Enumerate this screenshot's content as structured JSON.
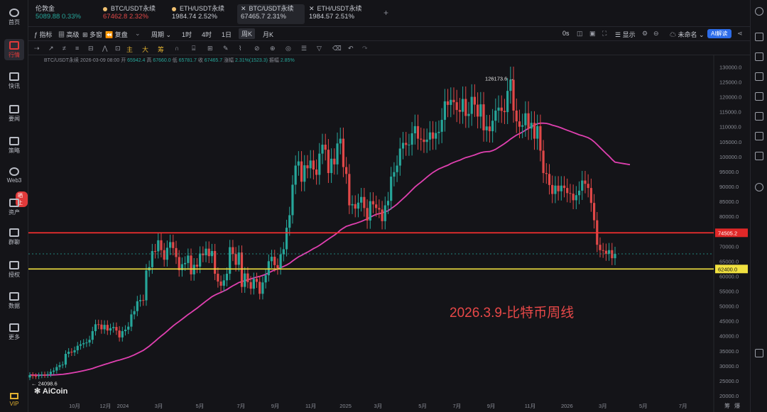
{
  "sidebar": {
    "items": [
      {
        "label": "首页",
        "icon": "home-icon"
      },
      {
        "label": "行情",
        "icon": "chart-icon"
      },
      {
        "label": "快讯",
        "icon": "news-flash-icon"
      },
      {
        "label": "要闻",
        "icon": "newspaper-icon"
      },
      {
        "label": "策略",
        "icon": "robot-icon"
      },
      {
        "label": "Web3",
        "icon": "web3-icon"
      },
      {
        "label": "资产",
        "icon": "wallet-icon"
      },
      {
        "label": "群聊",
        "icon": "chat-icon"
      },
      {
        "label": "授权",
        "icon": "authorize-icon"
      },
      {
        "label": "数据",
        "icon": "data-icon"
      },
      {
        "label": "更多",
        "icon": "more-grid-icon"
      },
      {
        "label": "VIP",
        "icon": "vip-icon"
      }
    ],
    "badge": "晒上"
  },
  "tabs": [
    {
      "title": "伦敦金",
      "price": "5089.88",
      "change": "0.33%",
      "dir": "up"
    },
    {
      "title": "BTC/USDT永续",
      "price": "67462.8",
      "change": "2.32%",
      "dir": "down"
    },
    {
      "title": "ETH/USDT永续",
      "price": "1984.74",
      "change": "2.52%",
      "dir": "neutral"
    },
    {
      "title": "BTC/USDT永续",
      "price": "67465.7",
      "change": "2.31%",
      "dir": "neutral"
    },
    {
      "title": "ETH/USDT永续",
      "price": "1984.57",
      "change": "2.51%",
      "dir": "neutral"
    }
  ],
  "toolbar": {
    "indicator": "指标",
    "advanced": "高级",
    "multi": "多窗",
    "replay": "复盘",
    "period": "周期",
    "intervals": [
      "1时",
      "4时",
      "1日",
      "周K",
      "月K"
    ],
    "selected_interval": "周K",
    "countdown": "0s",
    "display": "显示",
    "unnamed": "未命名",
    "ai": "AI解读"
  },
  "drawbar": {
    "main": "主",
    "big": "大",
    "chips": "筹"
  },
  "info": {
    "symbol": "BTC/USDT永续",
    "datetime": "2026-03-09 08:00",
    "open_label": "开",
    "open": "65942.4",
    "high_label": "高",
    "high": "67660.0",
    "low_label": "低",
    "low": "65781.7",
    "close_label": "收",
    "close": "67465.7",
    "change_label": "涨幅",
    "change": "2.31%(1523.3)",
    "amp_label": "振幅",
    "amp": "2.85%"
  },
  "annotation": "2026.3.9-比特币周线",
  "logo": "AiCoin",
  "bottom_right": [
    "筹",
    "爆"
  ],
  "colors": {
    "up": "#26a69a",
    "down": "#e04848",
    "ma": "#e040b0",
    "red_line": "#ff3030",
    "yellow_line": "#f0e040"
  },
  "chart_data": {
    "type": "candlestick",
    "ylim": [
      20000,
      132000
    ],
    "yticks": [
      130000,
      125000,
      120000,
      115000,
      110000,
      105000,
      100000,
      95000,
      90000,
      85000,
      80000,
      75000,
      70000,
      65000,
      60000,
      55000,
      50000,
      45000,
      40000,
      35000,
      30000,
      25000,
      20000
    ],
    "x_labels": [
      "10月",
      "12月",
      "2024",
      "3月",
      "5月",
      "7月",
      "9月",
      "11月",
      "2025",
      "3月",
      "5月",
      "7月",
      "9月",
      "11月",
      "2026",
      "3月",
      "5月",
      "7月"
    ],
    "price_lines": [
      {
        "value": 74505.2,
        "label": "74505.2",
        "color": "#ff3030"
      },
      {
        "value": 62400.0,
        "label": "62400.0",
        "color": "#f0e040"
      }
    ],
    "current_price": 67465.7,
    "high_marker": {
      "value": 126173.6,
      "label": "126173.6"
    },
    "low_marker": {
      "value": 24098.6,
      "label": "24098.6"
    },
    "closes": [
      26900,
      26600,
      26500,
      26800,
      27100,
      26900,
      27200,
      28000,
      28400,
      29600,
      30200,
      30400,
      34000,
      34700,
      34500,
      35200,
      36700,
      37200,
      37600,
      37800,
      38700,
      41600,
      43900,
      43800,
      42200,
      43700,
      41800,
      42600,
      43000,
      41800,
      39500,
      41600,
      42100,
      43100,
      47200,
      48300,
      51600,
      52000,
      51900,
      61900,
      63000,
      68400,
      68300,
      72000,
      68700,
      65500,
      69500,
      71400,
      69400,
      66400,
      62000,
      64000,
      64400,
      66900,
      60600,
      63800,
      63200,
      67600,
      67000,
      69200,
      66700,
      68400,
      60800,
      58200,
      56800,
      58600,
      60800,
      69700,
      67400,
      63800,
      67900,
      56400,
      60900,
      58000,
      55800,
      59100,
      58100,
      54100,
      57900,
      60300,
      65000,
      66500,
      63700,
      62700,
      67300,
      69000,
      76200,
      80400,
      90600,
      97000,
      98400,
      91600,
      97100,
      96100,
      98700,
      95700,
      93900,
      101000,
      104000,
      102300,
      94500,
      99300,
      97400,
      104400,
      106000,
      96500,
      94200,
      83700,
      84100,
      82600,
      84600,
      86500,
      82800,
      78600,
      85100,
      84000,
      82800,
      82300,
      78400,
      83700,
      85200,
      93300,
      94800,
      97000,
      102700,
      104600,
      103900,
      104000,
      107800,
      110200,
      106000,
      105700,
      104900,
      105700,
      108100,
      106000,
      107900,
      108300,
      112300,
      118500,
      117300,
      119000,
      118200,
      115600,
      115000,
      119300,
      113600,
      114300,
      120000,
      117400,
      113400,
      117500,
      108800,
      110100,
      108500,
      112000,
      115400,
      116400,
      115300,
      114900,
      122000,
      125700,
      115400,
      111800,
      110000,
      110500,
      114500,
      109400,
      111300,
      106000,
      110200,
      102000,
      94500,
      94200,
      90500,
      87500,
      90300,
      88400,
      90300,
      89500,
      87800,
      87600,
      85400,
      87100,
      88600,
      92000,
      90900,
      89500,
      84500,
      78700,
      70500,
      68700,
      68500,
      67500,
      68700,
      66000,
      67465.7
    ],
    "opens": [
      26100,
      26900,
      26600,
      26500,
      26800,
      27100,
      26900,
      27200,
      28000,
      28400,
      29600,
      30200,
      30400,
      34000,
      34700,
      34500,
      35200,
      36700,
      37200,
      37600,
      37800,
      38700,
      41600,
      43900,
      43800,
      42200,
      43700,
      41800,
      42600,
      43000,
      41800,
      39500,
      41600,
      42100,
      43100,
      47200,
      48300,
      51600,
      52000,
      51900,
      61900,
      63000,
      68400,
      68300,
      72000,
      68700,
      65500,
      69500,
      71400,
      69400,
      66400,
      62000,
      64000,
      64400,
      66900,
      60600,
      63800,
      63200,
      67600,
      67000,
      69200,
      66700,
      68400,
      60800,
      58200,
      56800,
      58600,
      60800,
      69700,
      67400,
      63800,
      67900,
      56400,
      60900,
      58000,
      55800,
      59100,
      58100,
      54100,
      57900,
      60300,
      65000,
      66500,
      63700,
      62700,
      67300,
      69000,
      76200,
      80400,
      90600,
      97000,
      98400,
      91600,
      97100,
      96100,
      98700,
      95700,
      93900,
      101000,
      104000,
      102300,
      94500,
      99300,
      97400,
      104400,
      106000,
      96500,
      94200,
      83700,
      84100,
      82600,
      84600,
      86500,
      82800,
      78600,
      85100,
      84000,
      82800,
      82300,
      78400,
      83700,
      85200,
      93300,
      94800,
      97000,
      102700,
      104600,
      103900,
      104000,
      107800,
      110200,
      106000,
      105700,
      104900,
      105700,
      108100,
      106000,
      107900,
      108300,
      112300,
      118500,
      117300,
      119000,
      118200,
      115600,
      115000,
      119300,
      113600,
      114300,
      120000,
      117400,
      113400,
      117500,
      108800,
      110100,
      108500,
      112000,
      115400,
      116400,
      115300,
      114900,
      122000,
      125700,
      115400,
      111800,
      110000,
      110500,
      114500,
      109400,
      111300,
      106000,
      110200,
      102000,
      94500,
      94200,
      90500,
      87500,
      90300,
      88400,
      90300,
      89500,
      87800,
      87600,
      85400,
      87100,
      88600,
      92000,
      90900,
      89500,
      84500,
      78700,
      70500,
      68700,
      68500,
      67500,
      68700,
      66000
    ]
  }
}
